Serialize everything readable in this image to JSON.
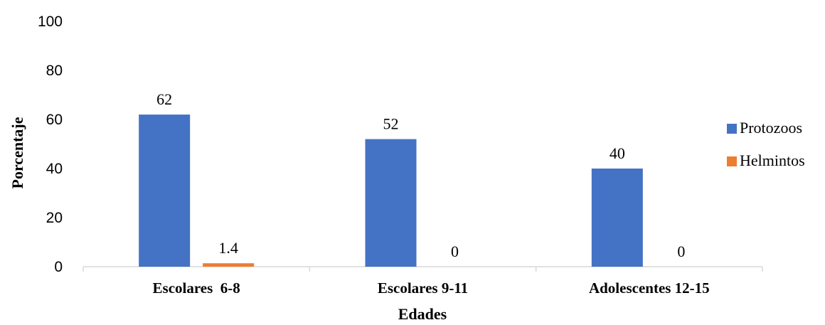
{
  "chart_data": {
    "type": "bar",
    "categories": [
      "Escolares  6-8",
      "Escolares 9-11",
      "Adolescentes 12-15"
    ],
    "series": [
      {
        "name": "Protozoos",
        "values": [
          62,
          52,
          40
        ],
        "color": "#4472C4"
      },
      {
        "name": "Helmintos",
        "values": [
          1.4,
          0,
          0
        ],
        "color": "#ED7D31"
      }
    ],
    "data_labels": [
      [
        "62",
        "52",
        "40"
      ],
      [
        "1.4",
        "0",
        "0"
      ]
    ],
    "xlabel": "Edades",
    "ylabel": "Porcentaje",
    "ylim": [
      0,
      100
    ],
    "yticks": [
      "0",
      "20",
      "40",
      "60",
      "80",
      "100"
    ],
    "grid": false,
    "legend_position": "right"
  }
}
